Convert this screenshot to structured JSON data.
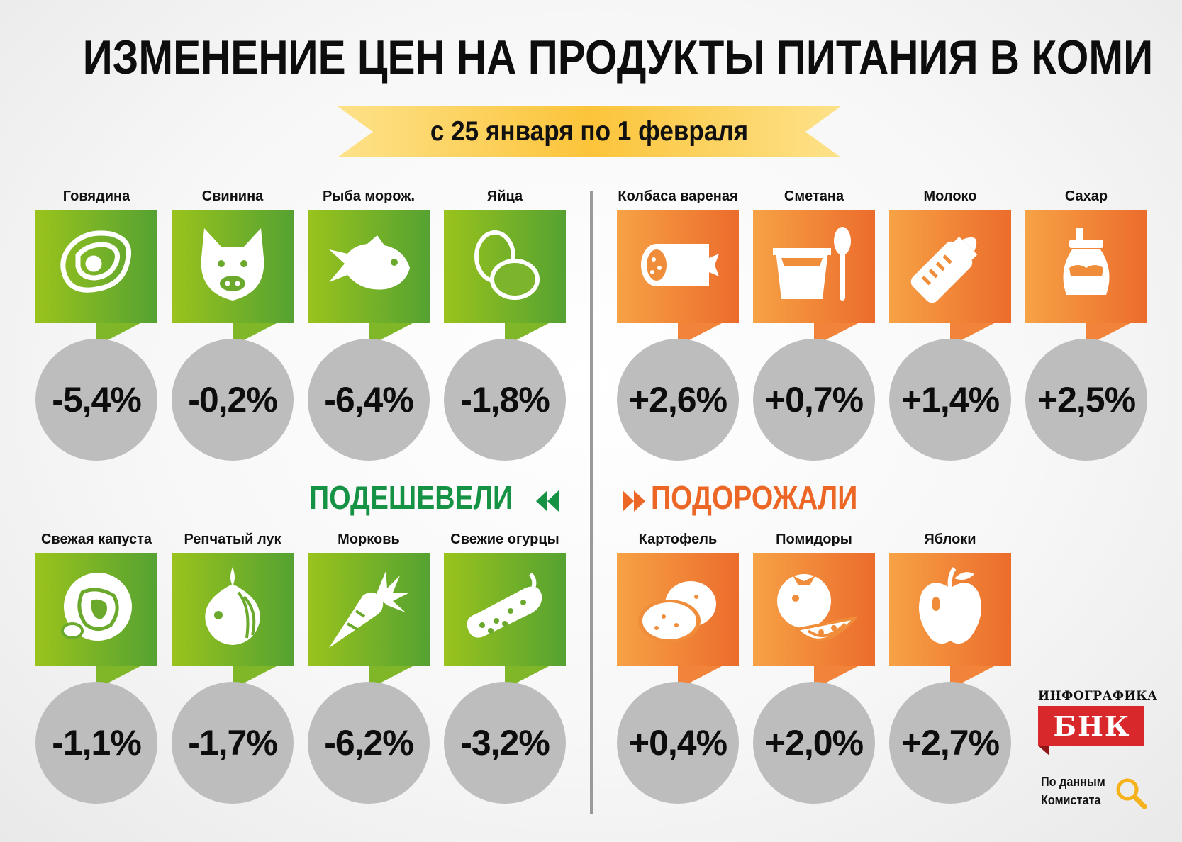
{
  "title": "ИЗМЕНЕНИЕ ЦЕН НА ПРОДУКТЫ ПИТАНИЯ В КОМИ",
  "period": "с 25 января по 1 февраля",
  "sections": {
    "cheaper": "ПОДЕШЕВЕЛИ",
    "pricier": "ПОДОРОЖАЛИ"
  },
  "colors": {
    "cheaper": "#159244",
    "pricier": "#ec6626",
    "circle": "#bdbdbd",
    "ribbon": "#fcc43a",
    "brand": "#d9282b"
  },
  "items": [
    {
      "label": "Говядина",
      "value": "-5,4%",
      "icon": "steak-icon"
    },
    {
      "label": "Свинина",
      "value": "-0,2%",
      "icon": "pig-icon"
    },
    {
      "label": "Рыба морож.",
      "value": "-6,4%",
      "icon": "fish-icon"
    },
    {
      "label": "Яйца",
      "value": "-1,8%",
      "icon": "eggs-icon"
    },
    {
      "label": "Колбаса вареная",
      "value": "+2,6%",
      "icon": "sausage-icon"
    },
    {
      "label": "Сметана",
      "value": "+0,7%",
      "icon": "sour-cream-icon"
    },
    {
      "label": "Молоко",
      "value": "+1,4%",
      "icon": "milk-bottle-icon"
    },
    {
      "label": "Сахар",
      "value": "+2,5%",
      "icon": "sugar-jar-icon"
    },
    {
      "label": "Свежая капуста",
      "value": "-1,1%",
      "icon": "cabbage-icon"
    },
    {
      "label": "Репчатый лук",
      "value": "-1,7%",
      "icon": "onion-icon"
    },
    {
      "label": "Морковь",
      "value": "-6,2%",
      "icon": "carrot-icon"
    },
    {
      "label": "Свежие огурцы",
      "value": "-3,2%",
      "icon": "cucumber-icon"
    },
    {
      "label": "Картофель",
      "value": "+0,4%",
      "icon": "potato-icon"
    },
    {
      "label": "Помидоры",
      "value": "+2,0%",
      "icon": "tomato-icon"
    },
    {
      "label": "Яблоки",
      "value": "+2,7%",
      "icon": "apple-icon"
    }
  ],
  "brand": {
    "caption": "ИНФОГРАФИКА",
    "name": "БНК"
  },
  "source": {
    "line1": "По данным",
    "line2": "Комистата"
  }
}
